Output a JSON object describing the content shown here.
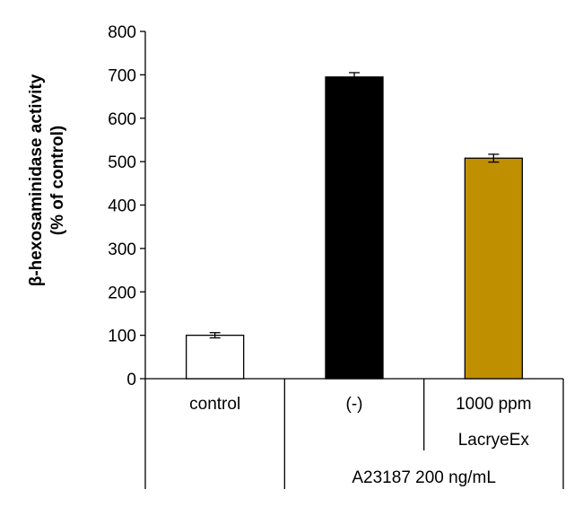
{
  "chart_data": {
    "type": "bar",
    "ylabel_lines": [
      "β-hexosaminidase activity",
      "(% of control)"
    ],
    "ylim": [
      0,
      800
    ],
    "yticks": [
      "0",
      "100",
      "200",
      "300",
      "400",
      "500",
      "600",
      "700",
      "800"
    ],
    "categories": [
      {
        "label_lines": [
          "control"
        ],
        "value": 100,
        "error": 6,
        "color": "#ffffff"
      },
      {
        "label_lines": [
          "(-)"
        ],
        "value": 695,
        "error": 10,
        "color": "#000000"
      },
      {
        "label_lines": [
          "1000 ppm",
          "LacryeEx"
        ],
        "value": 508,
        "error": 9,
        "color": "#bf8f00"
      }
    ],
    "group_label": "A23187 200 ng/mL",
    "grid": false,
    "legend": "none"
  }
}
